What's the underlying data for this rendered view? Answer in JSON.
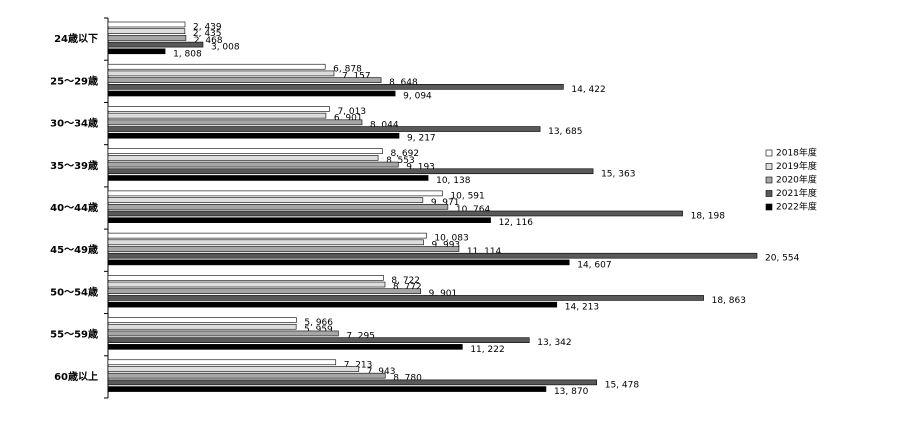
{
  "chart_data": {
    "type": "hbar",
    "categories": [
      "24歳以下",
      "25～29歳",
      "30～34歳",
      "35～39歳",
      "40～44歳",
      "45～49歳",
      "50～54歳",
      "55～59歳",
      "60歳以上"
    ],
    "series": [
      {
        "name": "2018年度",
        "color": "#ffffff",
        "values": [
          2439,
          6878,
          7013,
          8692,
          10591,
          10083,
          8722,
          5966,
          7213
        ],
        "value_labels": [
          "2, 439",
          "6, 878",
          "7, 013",
          "8, 692",
          "10, 591",
          "10, 083",
          "8, 722",
          "5, 966",
          "7, 213"
        ]
      },
      {
        "name": "2019年度",
        "color": "#dddddd",
        "values": [
          2435,
          7157,
          6901,
          8553,
          9971,
          9993,
          8772,
          5959,
          7943
        ],
        "value_labels": [
          "2, 435",
          "7, 157",
          "6, 901",
          "8, 553",
          "9, 971",
          "9, 993",
          "8, 772",
          "5, 959",
          "7, 943"
        ]
      },
      {
        "name": "2020年度",
        "color": "#a6a6a6",
        "values": [
          2468,
          8648,
          8044,
          9193,
          10764,
          11114,
          9901,
          7295,
          8780
        ],
        "value_labels": [
          "2, 468",
          "8, 648",
          "8, 044",
          "9, 193",
          "10, 764",
          "11, 114",
          "9, 901",
          "7, 295",
          "8, 780"
        ]
      },
      {
        "name": "2021年度",
        "color": "#595959",
        "values": [
          3008,
          14422,
          13685,
          15363,
          18198,
          20554,
          18863,
          13342,
          15478
        ],
        "value_labels": [
          "3, 008",
          "14, 422",
          "13, 685",
          "15, 363",
          "18, 198",
          "20, 554",
          "18, 863",
          "13, 342",
          "15, 478"
        ]
      },
      {
        "name": "2022年度",
        "color": "#000000",
        "values": [
          1808,
          9094,
          9217,
          10138,
          12116,
          14607,
          14213,
          11222,
          13870
        ],
        "value_labels": [
          "1, 808",
          "9, 094",
          "9, 217",
          "10, 138",
          "12, 116",
          "14, 607",
          "14, 213",
          "11, 222",
          "13, 870"
        ]
      }
    ]
  }
}
